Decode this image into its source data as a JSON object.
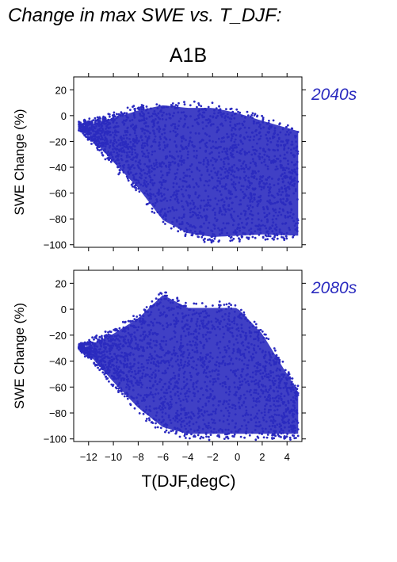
{
  "title": "Change in max SWE vs. T_DJF:",
  "scenario": "A1B",
  "chart_data": {
    "type": "scatter",
    "color": "#2b2bbf",
    "xlabel": "T(DJF,degC)",
    "ylabel": "SWE Change (%)",
    "xlim": [
      -13.2,
      5.2
    ],
    "x_ticks": [
      -12,
      -10,
      -8,
      -6,
      -4,
      -2,
      0,
      2,
      4
    ],
    "x_tick_labels": [
      "−12",
      "−10",
      "−8",
      "−6",
      "−4",
      "−2",
      "0",
      "2",
      "4"
    ],
    "panels": [
      {
        "label": "2040s",
        "ylim": [
          -102,
          30
        ],
        "y_ticks": [
          20,
          0,
          -20,
          -40,
          -60,
          -80,
          -100
        ],
        "y_tick_labels": [
          "20",
          "0",
          "−20",
          "−40",
          "−60",
          "−80",
          "−100"
        ],
        "x_range": [
          -12.8,
          4.9
        ],
        "y_top": [
          [
            -12.8,
            -5
          ],
          [
            -10,
            2
          ],
          [
            -8,
            8
          ],
          [
            -6,
            12
          ],
          [
            -4,
            10
          ],
          [
            -2,
            10
          ],
          [
            0,
            6
          ],
          [
            2,
            0
          ],
          [
            4.9,
            -8
          ]
        ],
        "y_bottom": [
          [
            -12.8,
            -10
          ],
          [
            -10,
            -40
          ],
          [
            -8,
            -60
          ],
          [
            -6,
            -85
          ],
          [
            -4,
            -95
          ],
          [
            -2,
            -98
          ],
          [
            0,
            -97
          ],
          [
            2,
            -96
          ],
          [
            4.9,
            -97
          ]
        ],
        "n_points": 2200
      },
      {
        "label": "2080s",
        "ylim": [
          -102,
          30
        ],
        "y_ticks": [
          20,
          0,
          -20,
          -40,
          -60,
          -80,
          -100
        ],
        "y_tick_labels": [
          "20",
          "0",
          "−20",
          "−40",
          "−60",
          "−80",
          "−100"
        ],
        "x_range": [
          -12.8,
          4.9
        ],
        "y_top": [
          [
            -12.8,
            -28
          ],
          [
            -10,
            -15
          ],
          [
            -8,
            -3
          ],
          [
            -6,
            15
          ],
          [
            -4,
            5
          ],
          [
            -2,
            5
          ],
          [
            0,
            5
          ],
          [
            2,
            -15
          ],
          [
            4.9,
            -60
          ]
        ],
        "y_bottom": [
          [
            -12.8,
            -30
          ],
          [
            -10,
            -60
          ],
          [
            -8,
            -80
          ],
          [
            -6,
            -95
          ],
          [
            -4,
            -100
          ],
          [
            -2,
            -100
          ],
          [
            0,
            -100
          ],
          [
            2,
            -100
          ],
          [
            4.9,
            -100
          ]
        ],
        "n_points": 2200
      }
    ]
  }
}
